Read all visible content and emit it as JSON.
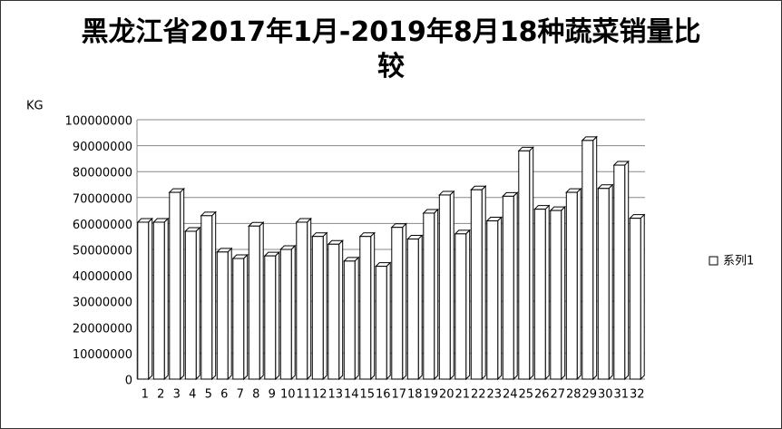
{
  "chart_data": {
    "type": "bar3d",
    "title": "黑龙江省2017年1月-2019年8月18种蔬菜销量比较",
    "y_label": "KG",
    "categories": [
      "1",
      "2",
      "3",
      "4",
      "5",
      "6",
      "7",
      "8",
      "9",
      "10",
      "11",
      "12",
      "13",
      "14",
      "15",
      "16",
      "17",
      "18",
      "19",
      "20",
      "21",
      "22",
      "23",
      "24",
      "25",
      "26",
      "27",
      "28",
      "29",
      "30",
      "31",
      "32"
    ],
    "series": [
      {
        "name": "系列1",
        "color": "#ffffff",
        "values": [
          60500000,
          60500000,
          72000000,
          57000000,
          63000000,
          49000000,
          46500000,
          59000000,
          47500000,
          50000000,
          60500000,
          55000000,
          52000000,
          45500000,
          55000000,
          43500000,
          58500000,
          54000000,
          64000000,
          71000000,
          56000000,
          73000000,
          61000000,
          70500000,
          88000000,
          65500000,
          65000000,
          72000000,
          92000000,
          73500000,
          82500000,
          62000000
        ]
      }
    ],
    "ylim": [
      0,
      100000000
    ],
    "yticks": [
      0,
      10000000,
      20000000,
      30000000,
      40000000,
      50000000,
      60000000,
      70000000,
      80000000,
      90000000,
      100000000
    ],
    "grid": true,
    "legend": "right"
  }
}
